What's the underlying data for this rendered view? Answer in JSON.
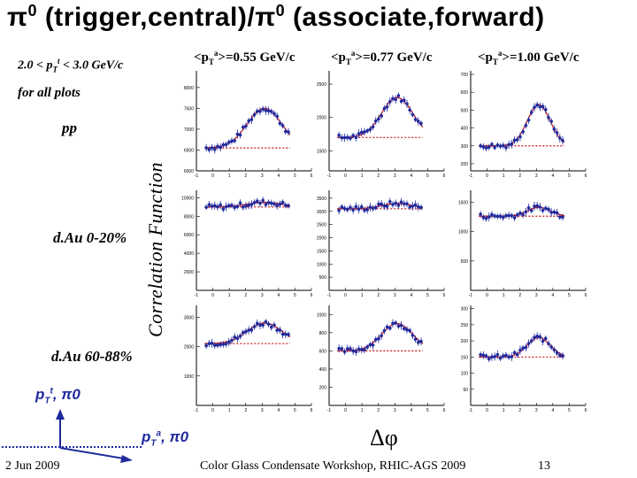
{
  "title_pi_left": "π",
  "title_sup_left": "0",
  "title_middle": " (trigger,central)/",
  "title_pi_right": "π",
  "title_sup_right": "0",
  "title_end": " (associate,forward)",
  "trigger_range": {
    "pre": "2.0 < p",
    "sub": "T",
    "sup": "t",
    "post": " < 3.0 GeV/c"
  },
  "for_all_plots": "for all plots",
  "row_labels": [
    "pp",
    "d.Au 0-20%",
    "d.Au 60-88%"
  ],
  "column_headers": [
    {
      "pre": "<p",
      "sub": "T",
      "sup": "a",
      "post": ">=0.55 GeV/c"
    },
    {
      "pre": "<p",
      "sub": "T",
      "sup": "a",
      "post": ">=0.77 GeV/c"
    },
    {
      "pre": "<p",
      "sub": "T",
      "sup": "a",
      "post": ">=1.00 GeV/c"
    }
  ],
  "y_axis_label": "Correlation Function",
  "x_axis_label": "Δφ",
  "diagram": {
    "trigger_label": {
      "pre": "p",
      "sub": "T",
      "sup": "t",
      "post": ", π0"
    },
    "assoc_label": {
      "pre": "p",
      "sub": "T",
      "sup": "a",
      "post": ", π0"
    }
  },
  "footer": {
    "date": "2 Jun 2009",
    "conference": "Color Glass Condensate Workshop, RHIC-AGS 2009",
    "page": "13"
  },
  "colors": {
    "points": "#1f2a9e",
    "fit": "#cc1010",
    "baseline": "#cc1010",
    "diagram": "#1f2a9e"
  },
  "chart_data": {
    "type": "scatter",
    "layout": "3x3 grid",
    "x_range": [
      -1,
      6
    ],
    "x_ticks": [
      -1,
      0,
      1,
      2,
      3,
      4,
      5,
      6
    ],
    "panels": [
      {
        "row": 0,
        "col": 0,
        "ylim": [
          6000,
          8400
        ],
        "yticks": [
          6000,
          6500,
          7000,
          7500,
          8000
        ],
        "baseline": 6550,
        "amp": 950,
        "width": 1.05
      },
      {
        "row": 0,
        "col": 1,
        "ylim": [
          1200,
          2700
        ],
        "yticks": [
          1500,
          2000,
          2500
        ],
        "baseline": 1700,
        "amp": 600,
        "width": 0.95
      },
      {
        "row": 0,
        "col": 2,
        "ylim": [
          160,
          720
        ],
        "yticks": [
          200,
          300,
          400,
          500,
          600,
          700
        ],
        "baseline": 300,
        "amp": 230,
        "width": 0.7
      },
      {
        "row": 1,
        "col": 0,
        "ylim": [
          0,
          10800
        ],
        "yticks": [
          2000,
          4000,
          6000,
          8000,
          10000
        ],
        "baseline": 9000,
        "amp": 500,
        "width": 1.05
      },
      {
        "row": 1,
        "col": 1,
        "ylim": [
          0,
          3800
        ],
        "yticks": [
          500,
          1000,
          1500,
          2000,
          2500,
          3000,
          3500
        ],
        "baseline": 3100,
        "amp": 200,
        "width": 0.95
      },
      {
        "row": 1,
        "col": 2,
        "ylim": [
          0,
          1700
        ],
        "yticks": [
          500,
          1000,
          1500
        ],
        "baseline": 1260,
        "amp": 150,
        "width": 0.7
      },
      {
        "row": 2,
        "col": 0,
        "ylim": [
          0,
          3400
        ],
        "yticks": [
          1000,
          2000,
          3000
        ],
        "baseline": 2100,
        "amp": 700,
        "width": 1.05
      },
      {
        "row": 2,
        "col": 1,
        "ylim": [
          0,
          1100
        ],
        "yticks": [
          200,
          400,
          600,
          800,
          1000
        ],
        "baseline": 600,
        "amp": 300,
        "width": 0.95
      },
      {
        "row": 2,
        "col": 2,
        "ylim": [
          0,
          310
        ],
        "yticks": [
          50,
          100,
          150,
          200,
          250,
          300
        ],
        "baseline": 150,
        "amp": 60,
        "width": 0.7
      }
    ]
  }
}
